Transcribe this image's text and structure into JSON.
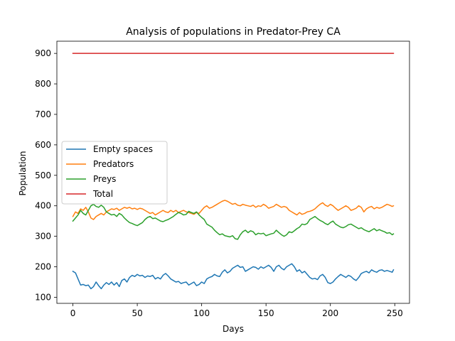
{
  "chart_data": {
    "type": "line",
    "title": "Analysis of populations in Predator-Prey CA",
    "xlabel": "Days",
    "ylabel": "Population",
    "xlim": [
      -12.45,
      261.45
    ],
    "ylim": [
      80,
      940
    ],
    "xticks": [
      0,
      50,
      100,
      150,
      200,
      250
    ],
    "yticks": [
      100,
      200,
      300,
      400,
      500,
      600,
      700,
      800,
      900
    ],
    "legend_position": "center-left",
    "grid": false,
    "series": [
      {
        "name": "Empty spaces",
        "color": "#1f77b4",
        "x": [
          0,
          2,
          4,
          6,
          8,
          10,
          12,
          14,
          16,
          18,
          20,
          22,
          24,
          26,
          28,
          30,
          32,
          34,
          36,
          38,
          40,
          42,
          44,
          46,
          48,
          50,
          52,
          54,
          56,
          58,
          60,
          62,
          64,
          66,
          68,
          70,
          72,
          74,
          76,
          78,
          80,
          82,
          84,
          86,
          88,
          90,
          92,
          94,
          96,
          98,
          100,
          102,
          104,
          106,
          108,
          110,
          112,
          114,
          116,
          118,
          120,
          122,
          124,
          126,
          128,
          130,
          132,
          134,
          136,
          138,
          140,
          142,
          144,
          146,
          148,
          150,
          152,
          154,
          156,
          158,
          160,
          162,
          164,
          166,
          168,
          170,
          172,
          174,
          176,
          178,
          180,
          182,
          184,
          186,
          188,
          190,
          192,
          194,
          196,
          198,
          200,
          202,
          204,
          206,
          208,
          210,
          212,
          214,
          216,
          218,
          220,
          222,
          224,
          226,
          228,
          230,
          232,
          234,
          236,
          238,
          240,
          242,
          244,
          246,
          248,
          249
        ],
        "values": [
          185,
          180,
          160,
          140,
          142,
          138,
          140,
          128,
          135,
          150,
          138,
          128,
          140,
          148,
          142,
          150,
          140,
          148,
          135,
          155,
          160,
          150,
          165,
          172,
          168,
          175,
          170,
          172,
          165,
          170,
          168,
          172,
          160,
          165,
          160,
          172,
          178,
          170,
          160,
          155,
          150,
          152,
          145,
          148,
          150,
          140,
          145,
          150,
          138,
          142,
          150,
          145,
          160,
          165,
          168,
          175,
          170,
          168,
          182,
          190,
          180,
          185,
          195,
          200,
          205,
          198,
          200,
          185,
          190,
          195,
          200,
          198,
          192,
          200,
          195,
          200,
          205,
          198,
          185,
          200,
          205,
          195,
          190,
          200,
          205,
          210,
          200,
          185,
          190,
          180,
          185,
          175,
          165,
          160,
          162,
          158,
          170,
          175,
          165,
          148,
          145,
          150,
          160,
          168,
          175,
          170,
          165,
          172,
          168,
          160,
          155,
          165,
          178,
          182,
          185,
          180,
          190,
          185,
          182,
          188,
          190,
          185,
          188,
          185,
          182,
          190
        ]
      },
      {
        "name": "Predators",
        "color": "#ff7f0e",
        "x": [
          0,
          2,
          4,
          6,
          8,
          10,
          12,
          14,
          16,
          18,
          20,
          22,
          24,
          26,
          28,
          30,
          32,
          34,
          36,
          38,
          40,
          42,
          44,
          46,
          48,
          50,
          52,
          54,
          56,
          58,
          60,
          62,
          64,
          66,
          68,
          70,
          72,
          74,
          76,
          78,
          80,
          82,
          84,
          86,
          88,
          90,
          92,
          94,
          96,
          98,
          100,
          102,
          104,
          106,
          108,
          110,
          112,
          114,
          116,
          118,
          120,
          122,
          124,
          126,
          128,
          130,
          132,
          134,
          136,
          138,
          140,
          142,
          144,
          146,
          148,
          150,
          152,
          154,
          156,
          158,
          160,
          162,
          164,
          166,
          168,
          170,
          172,
          174,
          176,
          178,
          180,
          182,
          184,
          186,
          188,
          190,
          192,
          194,
          196,
          198,
          200,
          202,
          204,
          206,
          208,
          210,
          212,
          214,
          216,
          218,
          220,
          222,
          224,
          226,
          228,
          230,
          232,
          234,
          236,
          238,
          240,
          242,
          244,
          246,
          248,
          249
        ],
        "values": [
          365,
          380,
          375,
          390,
          385,
          395,
          380,
          360,
          355,
          365,
          370,
          375,
          370,
          380,
          385,
          390,
          388,
          392,
          385,
          390,
          395,
          392,
          395,
          390,
          392,
          388,
          392,
          390,
          385,
          380,
          375,
          378,
          370,
          375,
          380,
          385,
          380,
          378,
          385,
          380,
          385,
          378,
          382,
          385,
          380,
          378,
          375,
          372,
          378,
          375,
          385,
          395,
          400,
          392,
          395,
          400,
          405,
          410,
          415,
          418,
          415,
          410,
          405,
          408,
          402,
          400,
          405,
          402,
          400,
          398,
          402,
          395,
          400,
          398,
          405,
          400,
          392,
          395,
          398,
          405,
          400,
          395,
          398,
          395,
          385,
          380,
          375,
          370,
          378,
          372,
          375,
          380,
          382,
          385,
          390,
          398,
          405,
          410,
          402,
          398,
          405,
          400,
          392,
          385,
          390,
          395,
          400,
          395,
          385,
          388,
          392,
          400,
          395,
          380,
          390,
          395,
          398,
          390,
          395,
          392,
          395,
          400,
          405,
          402,
          398,
          400
        ]
      },
      {
        "name": "Preys",
        "color": "#2ca02c",
        "x": [
          0,
          2,
          4,
          6,
          8,
          10,
          12,
          14,
          16,
          18,
          20,
          22,
          24,
          26,
          28,
          30,
          32,
          34,
          36,
          38,
          40,
          42,
          44,
          46,
          48,
          50,
          52,
          54,
          56,
          58,
          60,
          62,
          64,
          66,
          68,
          70,
          72,
          74,
          76,
          78,
          80,
          82,
          84,
          86,
          88,
          90,
          92,
          94,
          96,
          98,
          100,
          102,
          104,
          106,
          108,
          110,
          112,
          114,
          116,
          118,
          120,
          122,
          124,
          126,
          128,
          130,
          132,
          134,
          136,
          138,
          140,
          142,
          144,
          146,
          148,
          150,
          152,
          154,
          156,
          158,
          160,
          162,
          164,
          166,
          168,
          170,
          172,
          174,
          176,
          178,
          180,
          182,
          184,
          186,
          188,
          190,
          192,
          194,
          196,
          198,
          200,
          202,
          204,
          206,
          208,
          210,
          212,
          214,
          216,
          218,
          220,
          222,
          224,
          226,
          228,
          230,
          232,
          234,
          236,
          238,
          240,
          242,
          244,
          246,
          248,
          249
        ],
        "values": [
          350,
          360,
          370,
          385,
          375,
          370,
          385,
          400,
          405,
          398,
          395,
          402,
          395,
          380,
          375,
          370,
          372,
          365,
          375,
          370,
          360,
          352,
          345,
          342,
          338,
          335,
          340,
          345,
          355,
          362,
          365,
          358,
          360,
          355,
          350,
          348,
          352,
          355,
          360,
          365,
          372,
          378,
          375,
          370,
          372,
          382,
          378,
          375,
          380,
          370,
          362,
          355,
          340,
          335,
          330,
          320,
          312,
          305,
          308,
          302,
          300,
          298,
          302,
          292,
          290,
          305,
          315,
          320,
          312,
          318,
          315,
          305,
          310,
          308,
          310,
          302,
          305,
          308,
          310,
          320,
          312,
          305,
          300,
          305,
          315,
          312,
          318,
          325,
          330,
          340,
          338,
          342,
          355,
          360,
          365,
          358,
          352,
          348,
          342,
          338,
          345,
          350,
          340,
          335,
          330,
          328,
          332,
          338,
          340,
          335,
          330,
          325,
          328,
          322,
          318,
          315,
          320,
          325,
          318,
          322,
          318,
          315,
          310,
          312,
          305,
          308
        ]
      },
      {
        "name": "Total",
        "color": "#d62728",
        "x": [
          0,
          249
        ],
        "values": [
          900,
          900
        ]
      }
    ]
  }
}
